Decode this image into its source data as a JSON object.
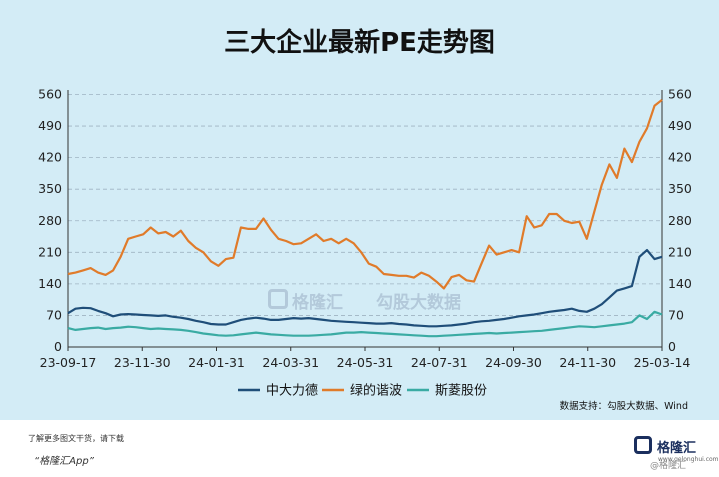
{
  "title": "三大企业最新PE走势图",
  "source": "数据支持：勾股大数据、Wind",
  "watermarks": {
    "brand": "格隆汇",
    "data_brand": "勾股大数据"
  },
  "footer": {
    "hint": "了解更多图文干货，请下载",
    "app": "“格隆汇App”",
    "logo": "格隆汇",
    "logo_sub": "www.gelonghui.com",
    "wm": "@格隆汇"
  },
  "colors": {
    "zhongda": "#1f4e79",
    "lvdi": "#e07b2a",
    "simeng": "#3aaba3"
  },
  "chart_data": {
    "type": "line",
    "title": "三大企业最新PE走势图",
    "x_ticks": [
      "23-09-17",
      "23-11-30",
      "24-01-31",
      "24-03-31",
      "24-05-31",
      "24-07-31",
      "24-09-30",
      "24-11-30",
      "25-03-14"
    ],
    "y_ticks": [
      0,
      70,
      140,
      210,
      280,
      350,
      420,
      490,
      560
    ],
    "ylim": [
      0,
      570
    ],
    "grid": true,
    "legend": "bottom",
    "series": [
      {
        "name": "中大力德",
        "color": "#1f4e79",
        "values": [
          75,
          85,
          87,
          86,
          80,
          75,
          68,
          72,
          73,
          72,
          71,
          70,
          69,
          70,
          67,
          65,
          62,
          58,
          55,
          51,
          50,
          50,
          55,
          60,
          63,
          65,
          63,
          60,
          60,
          62,
          64,
          63,
          64,
          62,
          60,
          58,
          57,
          56,
          55,
          54,
          53,
          52,
          52,
          53,
          51,
          50,
          48,
          47,
          46,
          46,
          47,
          48,
          50,
          52,
          55,
          57,
          58,
          60,
          62,
          65,
          68,
          70,
          72,
          75,
          78,
          80,
          82,
          85,
          80,
          78,
          85,
          95,
          110,
          125,
          130,
          135,
          200,
          215,
          195,
          200
        ]
      },
      {
        "name": "绿的谐波",
        "color": "#e07b2a",
        "values": [
          162,
          165,
          170,
          175,
          165,
          160,
          170,
          200,
          240,
          245,
          250,
          265,
          252,
          255,
          245,
          258,
          235,
          220,
          210,
          190,
          180,
          195,
          198,
          265,
          262,
          262,
          285,
          260,
          240,
          235,
          228,
          230,
          240,
          250,
          235,
          240,
          230,
          240,
          230,
          210,
          185,
          178,
          162,
          160,
          158,
          158,
          154,
          165,
          158,
          145,
          130,
          155,
          160,
          148,
          145,
          185,
          225,
          205,
          210,
          215,
          210,
          290,
          265,
          270,
          295,
          295,
          280,
          275,
          278,
          240,
          300,
          360,
          405,
          375,
          440,
          410,
          455,
          485,
          535,
          548
        ]
      },
      {
        "name": "斯菱股份",
        "color": "#3aaba3",
        "values": [
          42,
          38,
          40,
          42,
          43,
          40,
          42,
          43,
          45,
          44,
          42,
          40,
          41,
          40,
          39,
          38,
          36,
          33,
          30,
          28,
          26,
          25,
          26,
          28,
          30,
          32,
          30,
          28,
          27,
          26,
          25,
          25,
          25,
          26,
          27,
          28,
          30,
          32,
          32,
          33,
          32,
          31,
          30,
          29,
          28,
          27,
          26,
          25,
          24,
          24,
          25,
          26,
          27,
          28,
          29,
          30,
          31,
          30,
          31,
          32,
          33,
          34,
          35,
          36,
          38,
          40,
          42,
          44,
          46,
          45,
          44,
          46,
          48,
          50,
          52,
          55,
          70,
          62,
          78,
          72
        ]
      }
    ]
  }
}
